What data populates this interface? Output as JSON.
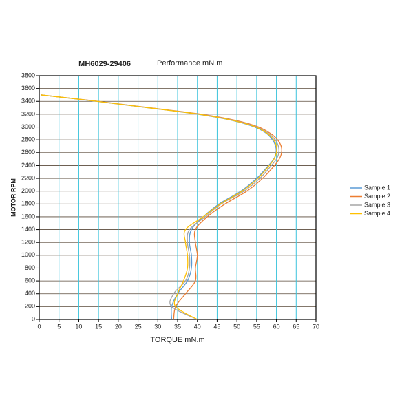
{
  "chart_data": {
    "type": "line",
    "title": "MH6029-29406",
    "subtitle": "Performance mN.m",
    "x_label": "TORQUE mN.m",
    "y_label": "MOTOR RPM",
    "xlim": [
      0,
      70
    ],
    "xticks": [
      0,
      5,
      10,
      15,
      20,
      25,
      30,
      35,
      40,
      45,
      50,
      55,
      60,
      65,
      70
    ],
    "ylim": [
      0,
      3800
    ],
    "yticks": [
      0,
      200,
      400,
      600,
      800,
      1000,
      1200,
      1400,
      1600,
      1800,
      2000,
      2200,
      2400,
      2600,
      2800,
      3000,
      3200,
      3400,
      3600,
      3800
    ],
    "grid": true,
    "legend": "right",
    "series": [
      {
        "name": "Sample 1",
        "color": "#5b9bd5",
        "x": [
          0.5,
          14.5,
          27.5,
          40,
          49,
          54.5,
          57.5,
          59,
          59.8,
          59.9,
          59.3,
          58,
          55,
          51,
          45.5,
          41.5,
          38.5,
          38,
          38.5,
          38.5,
          37.5,
          35,
          33.5,
          33.5
        ],
        "values": [
          3500,
          3400,
          3300,
          3200,
          3100,
          3000,
          2900,
          2800,
          2700,
          2600,
          2500,
          2400,
          2200,
          2000,
          1800,
          1600,
          1400,
          1200,
          1000,
          800,
          600,
          400,
          200,
          0
        ]
      },
      {
        "name": "Sample 2",
        "color": "#ed7d31",
        "x": [
          0.5,
          15,
          28,
          41,
          50,
          55.5,
          58.5,
          60.3,
          61.2,
          61.3,
          60.7,
          59.5,
          56.5,
          52.5,
          47,
          42.5,
          39.5,
          39.5,
          40,
          39.5,
          39.5,
          37,
          34.5,
          34
        ],
        "values": [
          3500,
          3400,
          3300,
          3200,
          3100,
          3000,
          2900,
          2800,
          2700,
          2600,
          2500,
          2400,
          2200,
          2000,
          1800,
          1600,
          1400,
          1200,
          1000,
          800,
          600,
          400,
          200,
          0
        ]
      },
      {
        "name": "Sample 3",
        "color": "#a5a5a5",
        "x": [
          0.5,
          14.8,
          27.8,
          40.5,
          49.5,
          55,
          58,
          59.7,
          60.5,
          60.6,
          60,
          58.7,
          55.8,
          51.8,
          46,
          42,
          38,
          37.5,
          38,
          38,
          37,
          34,
          33.5,
          40
        ],
        "values": [
          3500,
          3400,
          3300,
          3200,
          3100,
          3000,
          2900,
          2800,
          2700,
          2600,
          2500,
          2400,
          2200,
          2000,
          1800,
          1600,
          1400,
          1200,
          1000,
          800,
          600,
          400,
          200,
          0
        ]
      },
      {
        "name": "Sample 4",
        "color": "#ffc000",
        "x": [
          0.5,
          14.6,
          27.6,
          40.3,
          49.2,
          54.8,
          57.7,
          59.3,
          60,
          60,
          59.4,
          58.2,
          55.3,
          51.3,
          45.8,
          41.5,
          37,
          37,
          37.5,
          37.5,
          36.5,
          35,
          34.5,
          40
        ],
        "values": [
          3500,
          3400,
          3300,
          3200,
          3100,
          3000,
          2900,
          2800,
          2700,
          2600,
          2500,
          2400,
          2200,
          2000,
          1800,
          1600,
          1400,
          1200,
          1000,
          800,
          600,
          400,
          200,
          0
        ]
      }
    ]
  }
}
